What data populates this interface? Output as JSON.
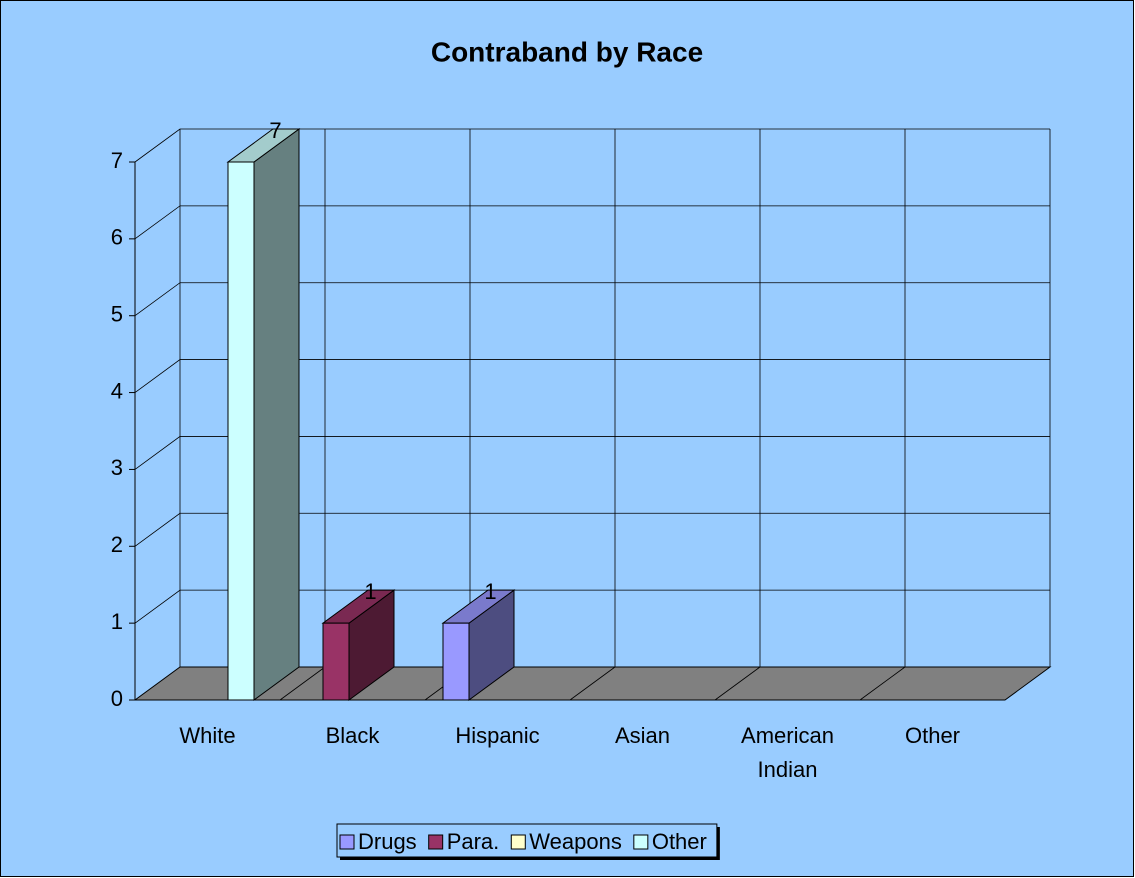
{
  "chart_data": {
    "type": "bar3d",
    "title": "Contraband by Race",
    "categories": [
      "White",
      "Black",
      "Hispanic",
      "Asian",
      "American Indian",
      "Other"
    ],
    "series": [
      {
        "name": "Drugs",
        "color": "#9999FF",
        "values": [
          null,
          null,
          1,
          null,
          null,
          null
        ]
      },
      {
        "name": "Para.",
        "color": "#993366",
        "values": [
          null,
          1,
          null,
          null,
          null,
          null
        ]
      },
      {
        "name": "Weapons",
        "color": "#FFFFCC",
        "values": [
          null,
          null,
          null,
          null,
          null,
          null
        ]
      },
      {
        "name": "Other",
        "color": "#CCFFFF",
        "values": [
          7,
          null,
          null,
          null,
          null,
          null
        ]
      }
    ],
    "ylim": [
      0,
      7
    ],
    "yticks": [
      0,
      1,
      2,
      3,
      4,
      5,
      6,
      7
    ],
    "grid": true,
    "legend": "bottom",
    "wall_color": "#99CCFF",
    "floor_color": "#808080"
  }
}
